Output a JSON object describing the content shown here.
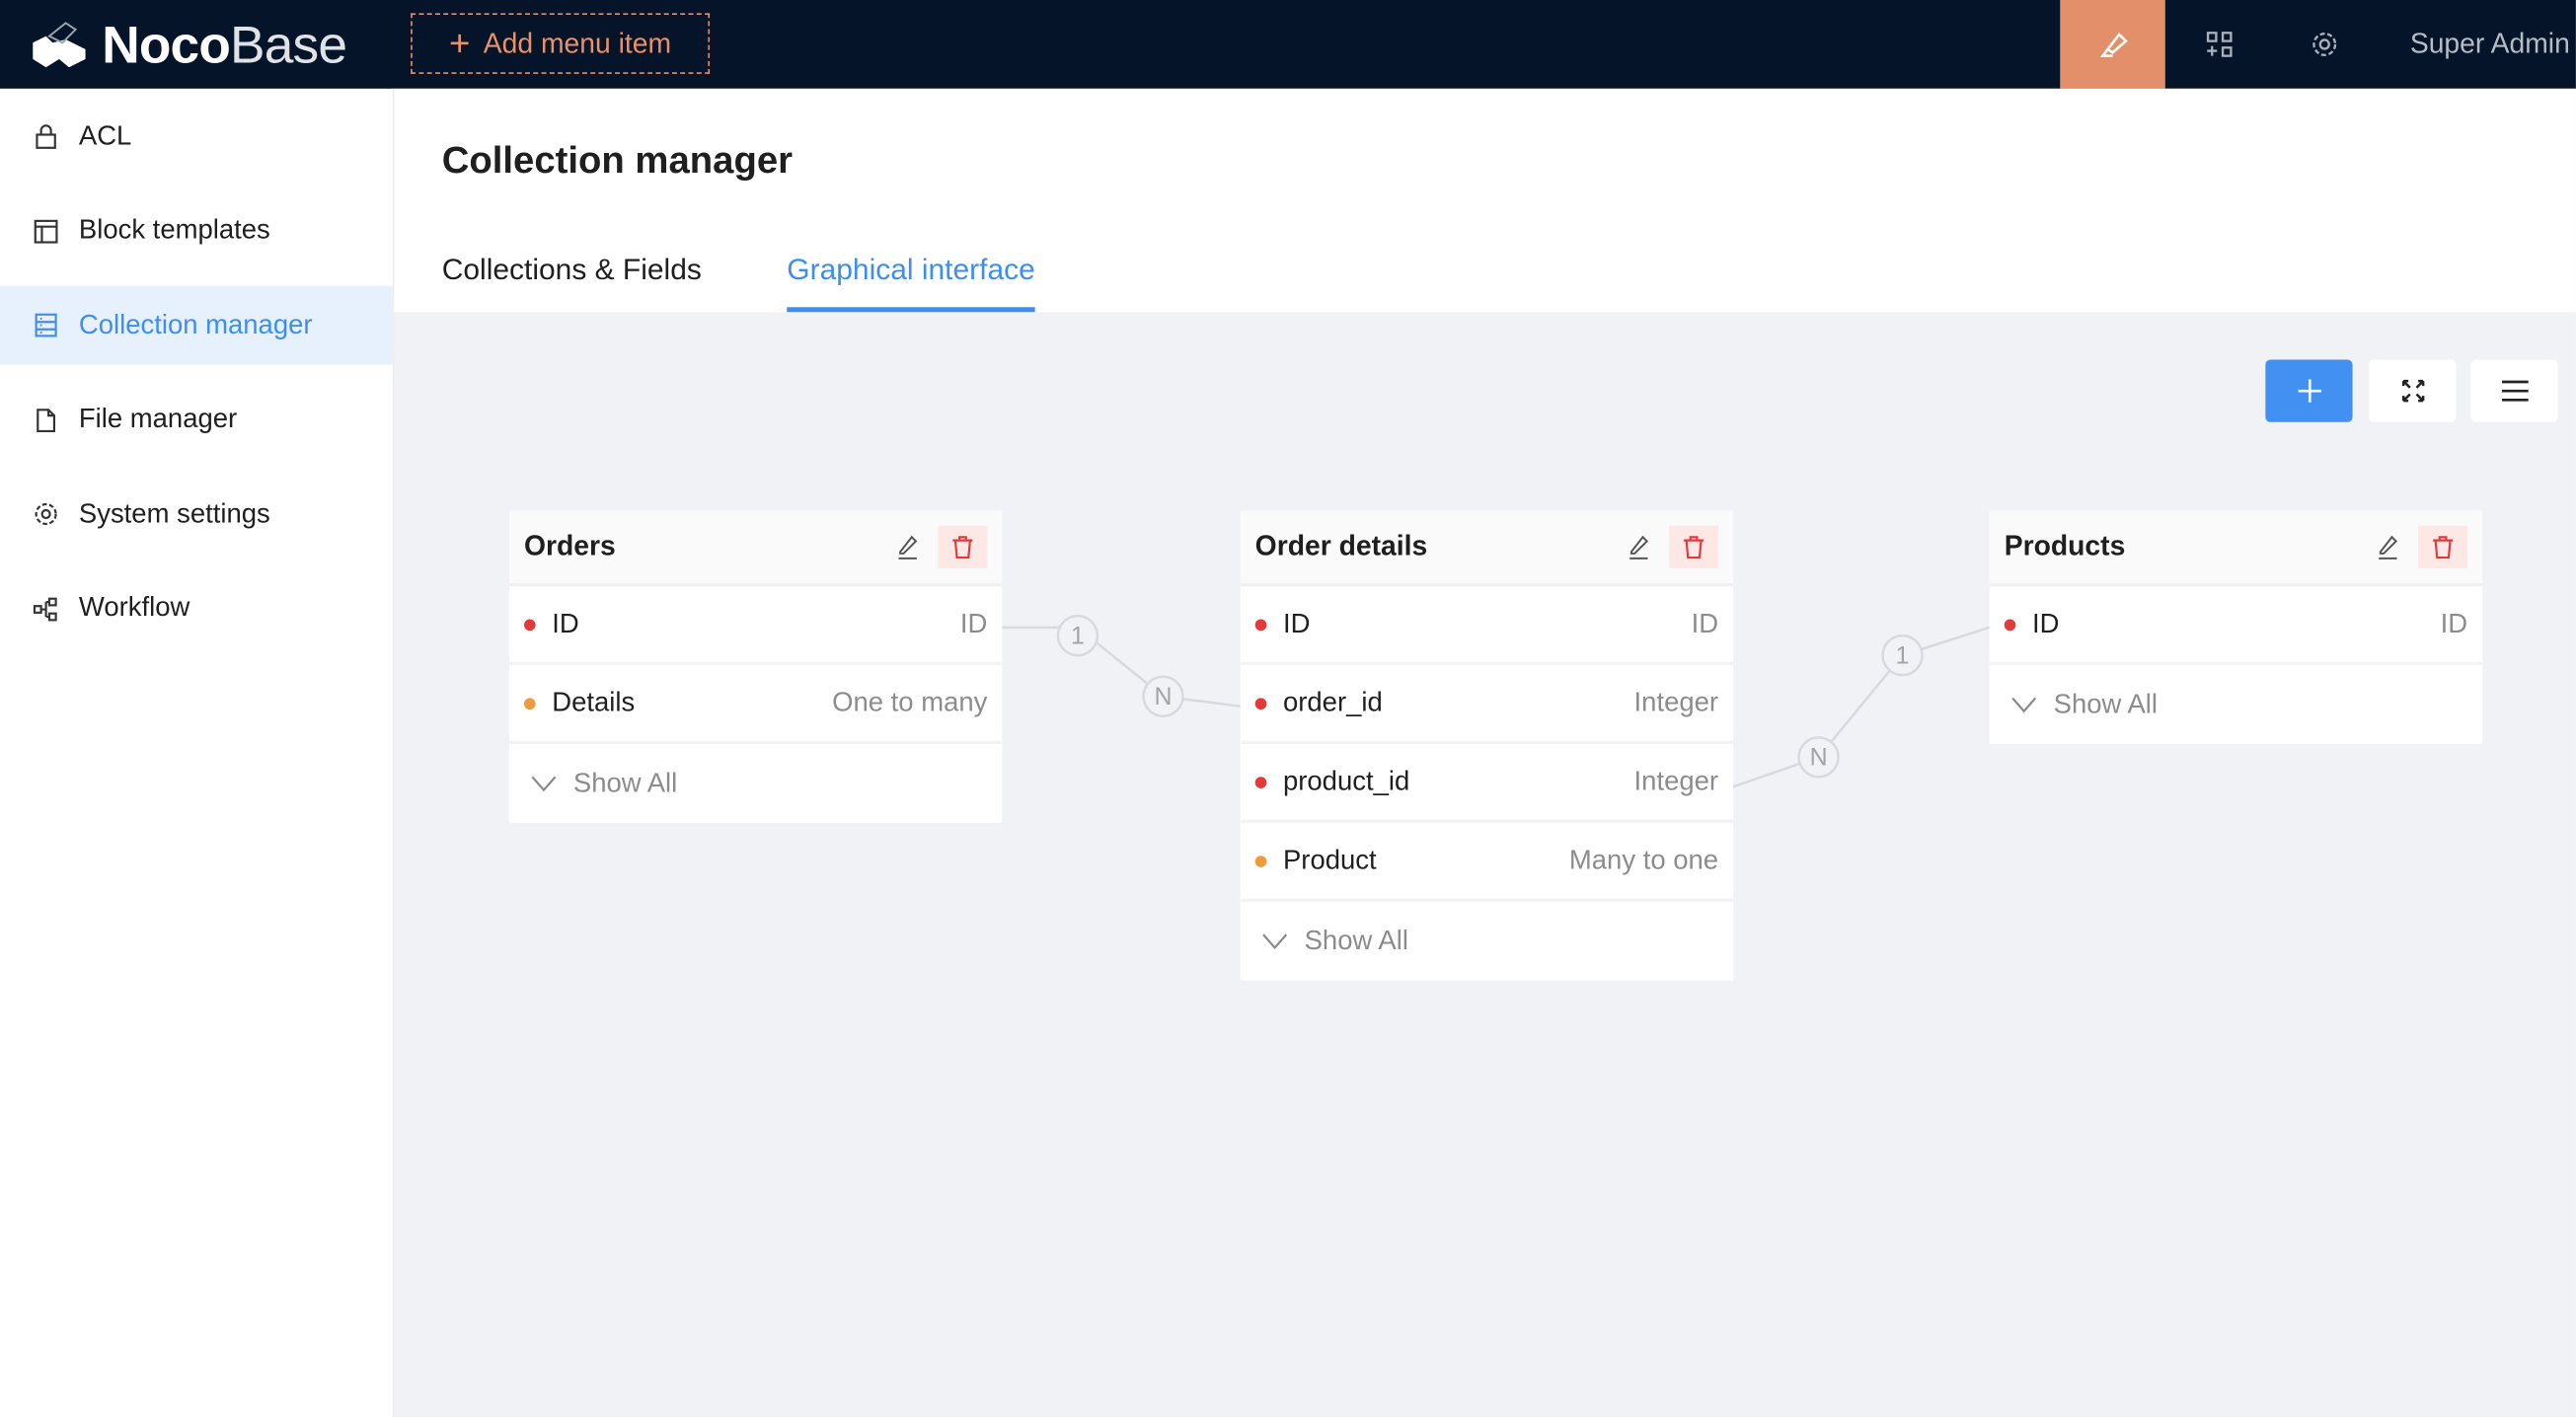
{
  "header": {
    "logo": {
      "bold": "Noco",
      "thin": "Base"
    },
    "add_menu_item": "Add menu item",
    "user": "Super Admin",
    "accent": "#e3906a"
  },
  "sidebar": {
    "items": [
      {
        "label": "ACL",
        "icon": "lock-icon"
      },
      {
        "label": "Block templates",
        "icon": "layout-icon"
      },
      {
        "label": "Collection manager",
        "icon": "database-icon",
        "active": true
      },
      {
        "label": "File manager",
        "icon": "file-icon"
      },
      {
        "label": "System settings",
        "icon": "gear-icon"
      },
      {
        "label": "Workflow",
        "icon": "workflow-icon"
      }
    ]
  },
  "page": {
    "title": "Collection manager",
    "tabs": [
      {
        "label": "Collections & Fields"
      },
      {
        "label": "Graphical interface",
        "active": true
      }
    ]
  },
  "graph": {
    "show_all": "Show All",
    "collections": [
      {
        "name": "Orders",
        "fields": [
          {
            "name": "ID",
            "type": "ID",
            "color": "#e03a3a"
          },
          {
            "name": "Details",
            "type": "One to many",
            "color": "#ef9a3c"
          }
        ]
      },
      {
        "name": "Order details",
        "fields": [
          {
            "name": "ID",
            "type": "ID",
            "color": "#e03a3a"
          },
          {
            "name": "order_id",
            "type": "Integer",
            "color": "#e03a3a"
          },
          {
            "name": "product_id",
            "type": "Integer",
            "color": "#e03a3a"
          },
          {
            "name": "Product",
            "type": "Many to one",
            "color": "#ef9a3c"
          }
        ]
      },
      {
        "name": "Products",
        "fields": [
          {
            "name": "ID",
            "type": "ID",
            "color": "#e03a3a"
          }
        ]
      }
    ],
    "links": [
      {
        "a": "1",
        "b": "N"
      },
      {
        "a": "N",
        "b": "1"
      }
    ]
  }
}
